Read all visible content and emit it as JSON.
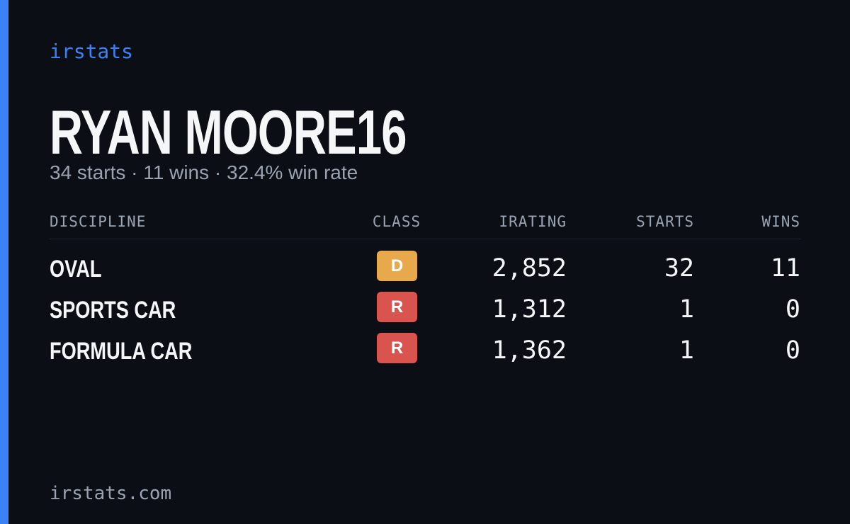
{
  "brand": "irstats",
  "driver": {
    "name": "RYAN MOORE16",
    "summary": "34 starts · 11 wins · 32.4% win rate"
  },
  "table": {
    "headers": [
      "DISCIPLINE",
      "CLASS",
      "IRATING",
      "STARTS",
      "WINS"
    ],
    "rows": [
      {
        "discipline": "OVAL",
        "class": "D",
        "class_color": "#e8a94c",
        "irating": "2,852",
        "starts": "32",
        "wins": "11"
      },
      {
        "discipline": "SPORTS CAR",
        "class": "R",
        "class_color": "#d9534f",
        "irating": "1,312",
        "starts": "1",
        "wins": "0"
      },
      {
        "discipline": "FORMULA CAR",
        "class": "R",
        "class_color": "#d9534f",
        "irating": "1,362",
        "starts": "1",
        "wins": "0"
      }
    ]
  },
  "footer": "irstats.com"
}
